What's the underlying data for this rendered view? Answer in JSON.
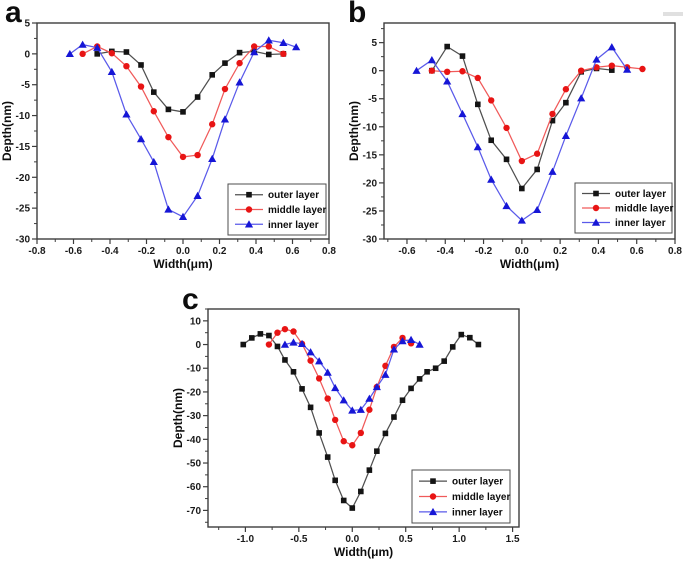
{
  "figure": {
    "background": "#ffffff",
    "description_visible_text_only": true
  },
  "chart_data": [
    {
      "id": "a",
      "panel_label": "a",
      "type": "line",
      "title": "",
      "xlabel": "Width(μm)",
      "ylabel": "Depth(nm)",
      "xlim": [
        -0.8,
        0.8
      ],
      "ylim": [
        -30,
        5
      ],
      "xticks": [
        -0.8,
        -0.6,
        -0.4,
        -0.2,
        0.0,
        0.2,
        0.4,
        0.6,
        0.8
      ],
      "xtick_labels": [
        "-0.8",
        "-0.6",
        "-0.4",
        "-0.2",
        "0.0",
        "0.2",
        "0.4",
        "0.6",
        "0.8"
      ],
      "yticks": [
        5,
        0,
        -5,
        -10,
        -15,
        -20,
        -25,
        -30
      ],
      "ytick_labels": [
        "5",
        "0",
        "-5",
        "-10",
        "-15",
        "-20",
        "-25",
        "-30"
      ],
      "x_minor": 0.1,
      "y_minor": 2.5,
      "grid": false,
      "legend_position": "lower right",
      "axis_color": "#3d3d3d",
      "series": [
        {
          "name": "outer layer",
          "marker": "square",
          "color": "#141414",
          "line_color": "#4f4f4f",
          "x": [
            -0.47,
            -0.39,
            -0.31,
            -0.23,
            -0.16,
            -0.08,
            0,
            0.08,
            0.16,
            0.23,
            0.31,
            0.39,
            0.47,
            0.55
          ],
          "y": [
            0,
            0.4,
            0.3,
            -1.8,
            -6.2,
            -9.0,
            -9.4,
            -7.0,
            -3.4,
            -1.5,
            0.2,
            0.4,
            -0.1,
            0
          ]
        },
        {
          "name": "middle layer",
          "marker": "circle",
          "color": "#e81414",
          "line_color": "#f05a5a",
          "x": [
            -0.55,
            -0.47,
            -0.39,
            -0.31,
            -0.23,
            -0.16,
            -0.08,
            0,
            0.08,
            0.16,
            0.23,
            0.31,
            0.39,
            0.47,
            0.55
          ],
          "y": [
            0,
            1.2,
            0.1,
            -2.0,
            -5.3,
            -9.3,
            -13.5,
            -16.7,
            -16.4,
            -11.4,
            -5.7,
            -1.5,
            1.2,
            1.2,
            0
          ]
        },
        {
          "name": "inner layer",
          "marker": "triangle",
          "color": "#1616d6",
          "line_color": "#5a5aea",
          "x": [
            -0.62,
            -0.55,
            -0.47,
            -0.39,
            -0.31,
            -0.23,
            -0.16,
            -0.08,
            0,
            0.08,
            0.16,
            0.23,
            0.31,
            0.39,
            0.47,
            0.55,
            0.62
          ],
          "y": [
            0,
            1.5,
            1.0,
            -2.9,
            -9.8,
            -13.8,
            -17.5,
            -25.2,
            -26.4,
            -23.0,
            -17.0,
            -10.6,
            -4.6,
            0.3,
            2.2,
            1.8,
            1.1
          ]
        }
      ],
      "layout": {
        "panel": [
          0,
          0,
          342,
          280
        ],
        "plot": [
          37,
          23,
          329,
          239
        ],
        "legend": [
          228,
          184,
          98,
          51
        ]
      }
    },
    {
      "id": "b",
      "panel_label": "b",
      "type": "line",
      "title": "",
      "xlabel": "Width(μm)",
      "ylabel": "Depth(nm)",
      "xlim": [
        -0.72,
        0.8
      ],
      "ylim": [
        -30,
        8.5
      ],
      "xticks": [
        -0.6,
        -0.4,
        -0.2,
        0.0,
        0.2,
        0.4,
        0.6,
        0.8
      ],
      "xtick_labels": [
        "-0.6",
        "-0.4",
        "-0.2",
        "0.0",
        "0.2",
        "0.4",
        "0.6",
        "0.8"
      ],
      "yticks": [
        5,
        0,
        -5,
        -10,
        -15,
        -20,
        -25,
        -30
      ],
      "ytick_labels": [
        "5",
        "0",
        "-5",
        "-10",
        "-15",
        "-20",
        "-25",
        "-30"
      ],
      "x_minor": 0.1,
      "y_minor": 2.5,
      "grid": false,
      "legend_position": "lower right",
      "axis_color": "#3d3d3d",
      "series": [
        {
          "name": "outer layer",
          "marker": "square",
          "color": "#141414",
          "line_color": "#4f4f4f",
          "x": [
            -0.47,
            -0.39,
            -0.31,
            -0.23,
            -0.16,
            -0.08,
            0,
            0.08,
            0.16,
            0.23,
            0.31,
            0.39,
            0.47
          ],
          "y": [
            0,
            4.3,
            2.6,
            -6.0,
            -12.4,
            -15.8,
            -21.0,
            -17.6,
            -8.9,
            -5.7,
            -0.2,
            0.4,
            0.1
          ]
        },
        {
          "name": "middle layer",
          "marker": "circle",
          "color": "#e81414",
          "line_color": "#f05a5a",
          "x": [
            -0.47,
            -0.39,
            -0.31,
            -0.23,
            -0.16,
            -0.08,
            0,
            0.08,
            0.16,
            0.23,
            0.31,
            0.39,
            0.47,
            0.55,
            0.63
          ],
          "y": [
            0,
            -0.2,
            -0.1,
            -1.3,
            -5.3,
            -10.2,
            -16.1,
            -14.8,
            -7.7,
            -3.3,
            0,
            0.6,
            0.9,
            0.6,
            0.3
          ]
        },
        {
          "name": "inner layer",
          "marker": "triangle",
          "color": "#1616d6",
          "line_color": "#5a5aea",
          "x": [
            -0.55,
            -0.47,
            -0.39,
            -0.31,
            -0.23,
            -0.16,
            -0.08,
            0,
            0.08,
            0.16,
            0.23,
            0.31,
            0.39,
            0.47,
            0.55
          ],
          "y": [
            0,
            1.9,
            -1.9,
            -7.7,
            -13.6,
            -19.4,
            -24.1,
            -26.7,
            -24.8,
            -18.0,
            -11.6,
            -4.9,
            2.0,
            4.2,
            0.2
          ]
        }
      ],
      "layout": {
        "panel": [
          342,
          0,
          343,
          280
        ],
        "plot": [
          42,
          23,
          333,
          239
        ],
        "legend": [
          233,
          183,
          97,
          50
        ]
      }
    },
    {
      "id": "c",
      "panel_label": "c",
      "type": "line",
      "title": "",
      "xlabel": "Width(μm)",
      "ylabel": "Depth(nm)",
      "xlim": [
        -1.35,
        1.56
      ],
      "ylim": [
        -77,
        15
      ],
      "xticks": [
        -1.0,
        -0.5,
        0.0,
        0.5,
        1.0,
        1.5
      ],
      "xtick_labels": [
        "-1.0",
        "-0.5",
        "0.0",
        "0.5",
        "1.0",
        "1.5"
      ],
      "yticks": [
        10,
        0,
        -10,
        -20,
        -30,
        -40,
        -50,
        -60,
        -70
      ],
      "ytick_labels": [
        "10",
        "0",
        "-10",
        "-20",
        "-30",
        "-40",
        "-50",
        "-60",
        "-70"
      ],
      "x_minor": 0.25,
      "y_minor": 5,
      "grid": false,
      "legend_position": "lower right",
      "axis_color": "#3d3d3d",
      "series": [
        {
          "name": "outer layer",
          "marker": "square",
          "color": "#141414",
          "line_color": "#4f4f4f",
          "x": [
            -1.02,
            -0.94,
            -0.86,
            -0.78,
            -0.7,
            -0.63,
            -0.55,
            -0.47,
            -0.39,
            -0.31,
            -0.23,
            -0.16,
            -0.08,
            0,
            0.08,
            0.16,
            0.23,
            0.31,
            0.39,
            0.47,
            0.55,
            0.63,
            0.7,
            0.78,
            0.86,
            0.94,
            1.02,
            1.1,
            1.18
          ],
          "y": [
            0,
            2.8,
            4.5,
            3.8,
            -0.8,
            -6.5,
            -11.5,
            -18.7,
            -26.5,
            -37.3,
            -47.5,
            -57.3,
            -65.8,
            -69.0,
            -62.0,
            -53.0,
            -45.0,
            -37.5,
            -30.6,
            -23.5,
            -18.5,
            -14.5,
            -11.5,
            -10.0,
            -7.0,
            -1.0,
            4.2,
            2.9,
            0
          ]
        },
        {
          "name": "middle layer",
          "marker": "circle",
          "color": "#e81414",
          "line_color": "#f05a5a",
          "x": [
            -0.78,
            -0.7,
            -0.63,
            -0.55,
            -0.47,
            -0.39,
            -0.31,
            -0.23,
            -0.16,
            -0.08,
            0,
            0.08,
            0.16,
            0.23,
            0.31,
            0.39,
            0.47,
            0.55
          ],
          "y": [
            0,
            5.0,
            6.5,
            5.5,
            0.3,
            -6.8,
            -14.3,
            -22.8,
            -31.8,
            -40.8,
            -42.5,
            -37.3,
            -27.5,
            -17.9,
            -9.0,
            -1.0,
            2.8,
            0.5
          ]
        },
        {
          "name": "inner layer",
          "marker": "triangle",
          "color": "#1616d6",
          "line_color": "#5a5aea",
          "x": [
            -0.63,
            -0.55,
            -0.47,
            -0.39,
            -0.31,
            -0.23,
            -0.16,
            -0.08,
            0,
            0.08,
            0.16,
            0.23,
            0.31,
            0.39,
            0.47,
            0.55,
            0.63
          ],
          "y": [
            0,
            0.9,
            0.3,
            -3.2,
            -7.0,
            -11.8,
            -18.3,
            -23.5,
            -27.8,
            -27.5,
            -22.8,
            -17.9,
            -12.7,
            -2.0,
            1.5,
            2.0,
            0
          ]
        }
      ],
      "layout": {
        "panel": [
          170,
          280,
          380,
          281
        ],
        "plot": [
          38,
          29,
          349,
          247
        ],
        "legend": [
          242,
          190,
          98,
          53
        ]
      }
    }
  ]
}
